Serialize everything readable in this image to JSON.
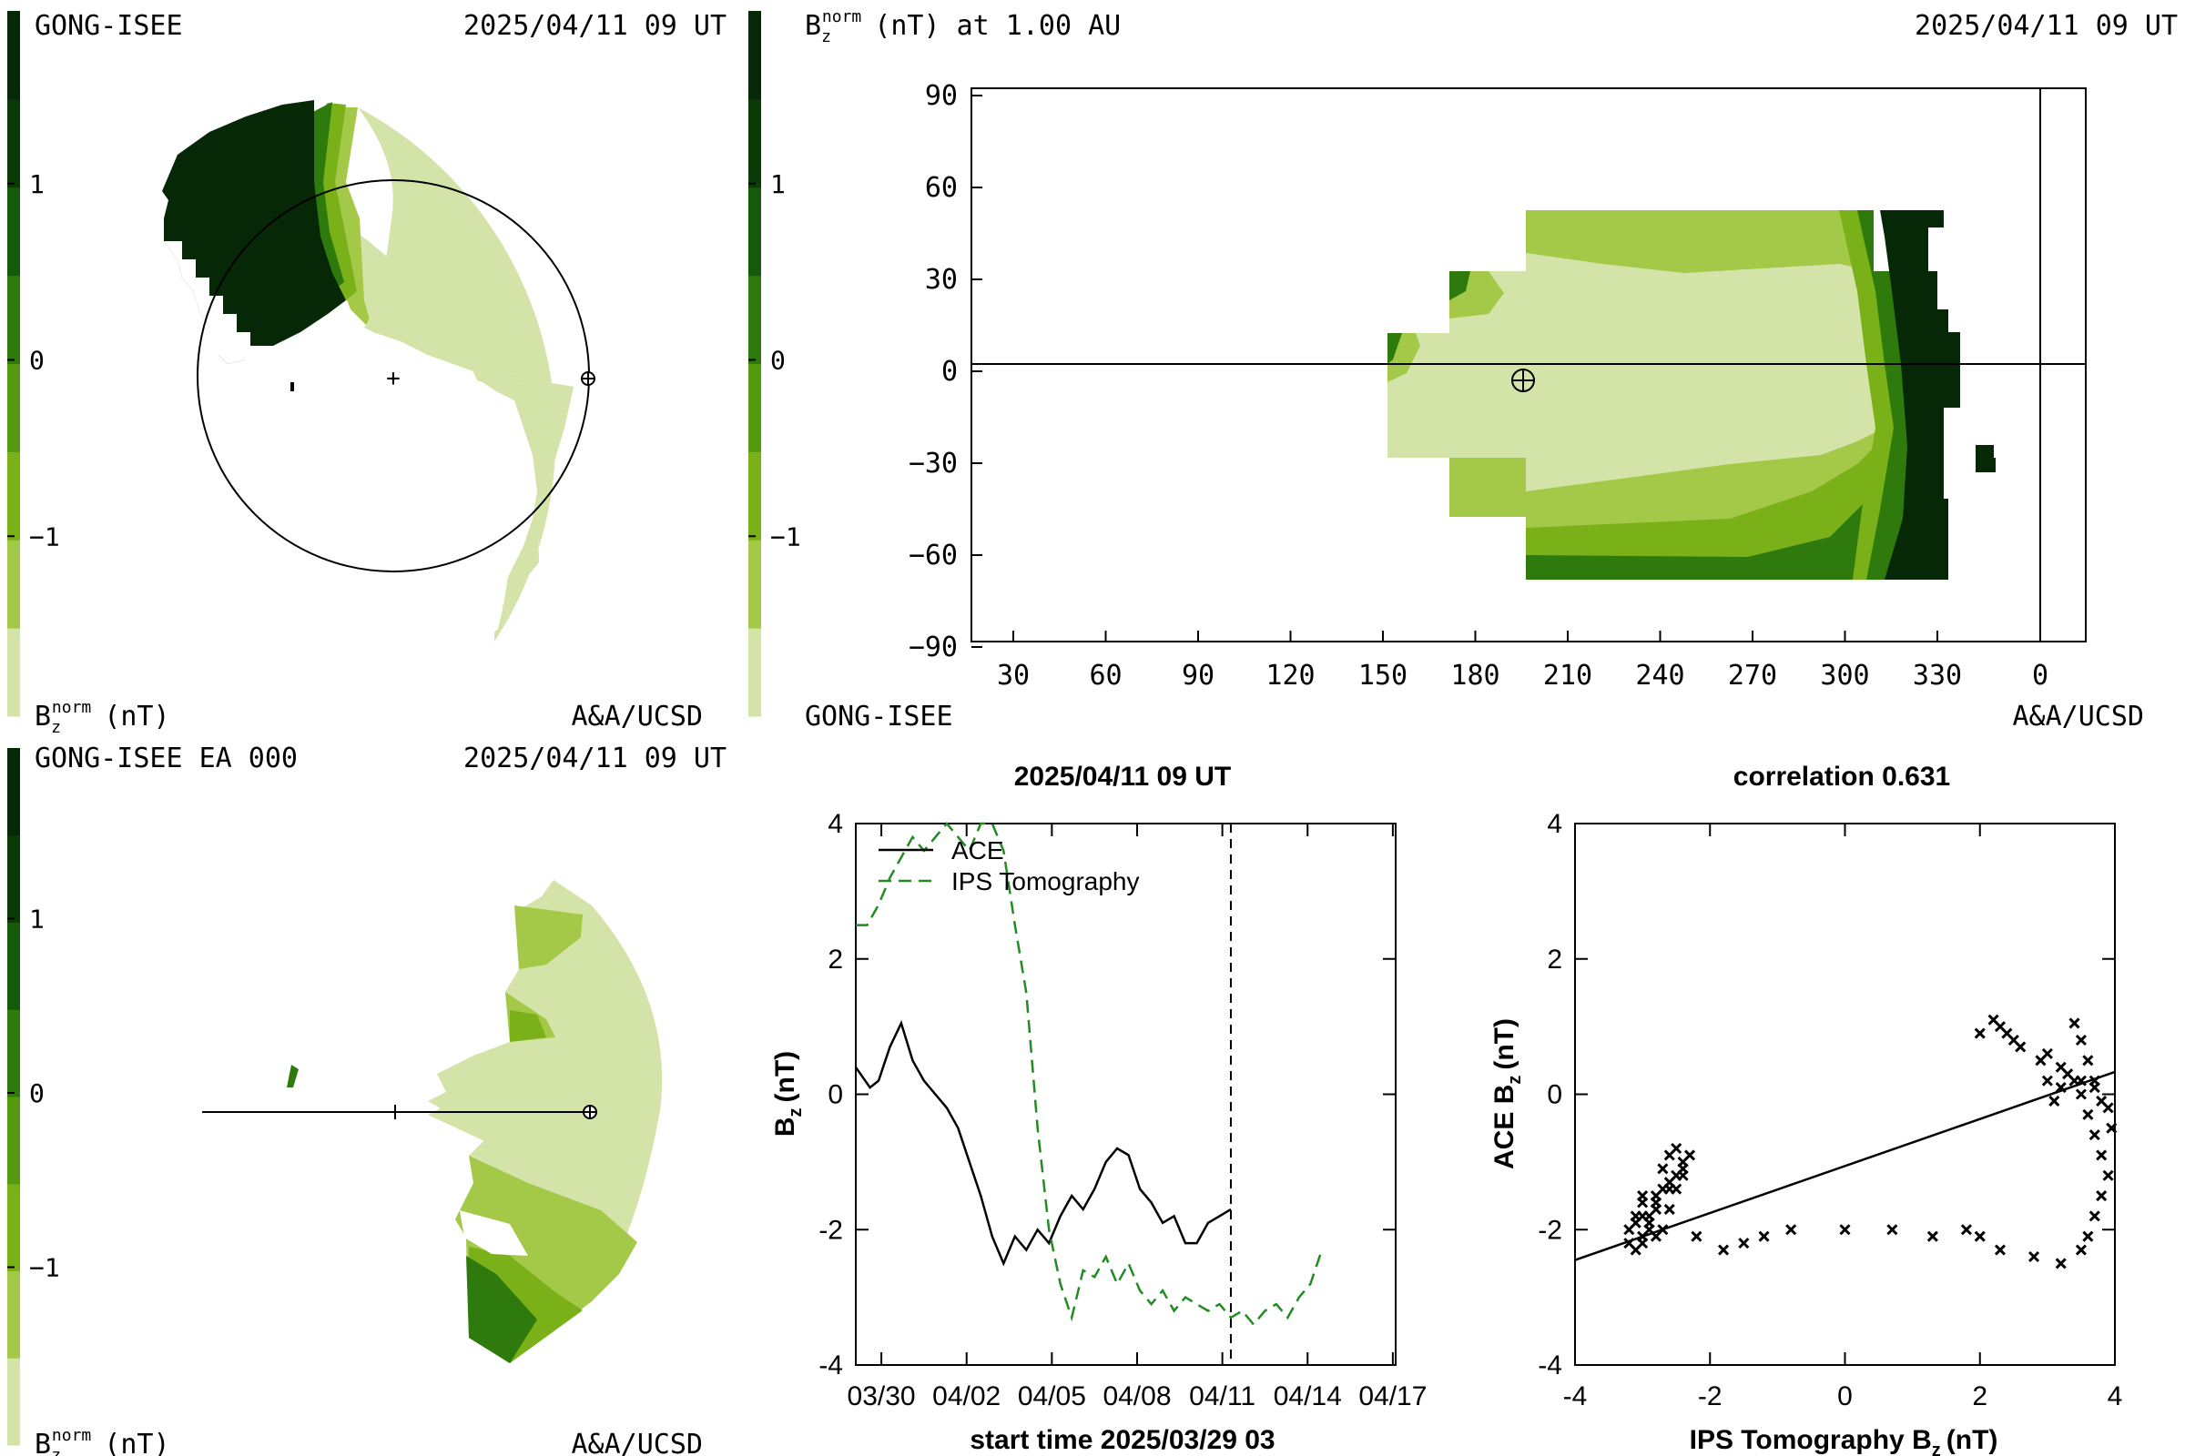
{
  "colors": {
    "scale": [
      "#d4e4a8",
      "#a4c848",
      "#7ab018",
      "#549a0e",
      "#2e7a0c",
      "#155a0a",
      "#0a3a06",
      "#062806"
    ],
    "ink": "#000000",
    "ips": "#228B22"
  },
  "panel_a": {
    "source": "GONG-ISEE",
    "time": "2025/04/11 09 UT",
    "bar_label": "B",
    "bar_sub": "z",
    "bar_sup": "norm",
    "bar_unit": "(nT)",
    "credit": "A&A/UCSD",
    "ticks": [
      "1",
      "0",
      "−1"
    ]
  },
  "panel_b": {
    "title_main": "B",
    "title_sub": "z",
    "title_sup": "norm",
    "title_rest": "(nT) at 1.00 AU",
    "time": "2025/04/11 09 UT",
    "source": "GONG-ISEE",
    "credit": "A&A/UCSD",
    "bar_ticks": [
      "1",
      "0",
      "−1"
    ],
    "y_ticks": [
      "90",
      "60",
      "30",
      "0",
      "−30",
      "−60",
      "−90"
    ],
    "x_ticks": [
      "30",
      "60",
      "90",
      "120",
      "150",
      "180",
      "210",
      "240",
      "270",
      "300",
      "330",
      "0"
    ]
  },
  "panel_c": {
    "source": "GONG-ISEE EA 000",
    "time": "2025/04/11 09 UT",
    "bar_label": "B",
    "bar_sub": "z",
    "bar_sup": "norm",
    "bar_unit": "(nT)",
    "credit": "A&A/UCSD",
    "ticks": [
      "1",
      "0",
      "−1"
    ]
  },
  "chart_data": [
    {
      "type": "line",
      "title": "2025/04/11 09 UT",
      "xlabel": "start time 2025/03/29 03",
      "ylabel": "B",
      "ylabel_sub": "z",
      "ylabel_unit": "(nT)",
      "xlim": [
        0,
        19
      ],
      "ylim": [
        -4,
        4
      ],
      "x_ticks": [
        {
          "label": "03/30",
          "x": 0.9
        },
        {
          "label": "04/02",
          "x": 3.9
        },
        {
          "label": "04/05",
          "x": 6.9
        },
        {
          "label": "04/08",
          "x": 9.9
        },
        {
          "label": "04/11",
          "x": 12.9
        },
        {
          "label": "04/14",
          "x": 15.9
        },
        {
          "label": "04/17",
          "x": 18.9
        }
      ],
      "y_ticks": [
        {
          "label": "4",
          "v": 4
        },
        {
          "label": "2",
          "v": 2
        },
        {
          "label": "0",
          "v": 0
        },
        {
          "label": "-2",
          "v": -2
        },
        {
          "label": "-4",
          "v": -4
        }
      ],
      "now_marker_x": 13.2,
      "series": [
        {
          "name": "ACE",
          "style": "solid",
          "x": [
            0,
            0.5,
            0.8,
            1.2,
            1.6,
            2.0,
            2.4,
            2.8,
            3.2,
            3.6,
            4.0,
            4.4,
            4.8,
            5.2,
            5.6,
            6.0,
            6.4,
            6.8,
            7.2,
            7.6,
            8.0,
            8.4,
            8.8,
            9.2,
            9.6,
            10.0,
            10.4,
            10.8,
            11.2,
            11.6,
            12.0,
            12.4,
            12.8,
            13.2
          ],
          "y": [
            0.4,
            0.1,
            0.2,
            0.7,
            1.05,
            0.5,
            0.2,
            0.0,
            -0.2,
            -0.5,
            -1.0,
            -1.5,
            -2.1,
            -2.5,
            -2.1,
            -2.3,
            -2.0,
            -2.2,
            -1.8,
            -1.5,
            -1.7,
            -1.4,
            -1.0,
            -0.8,
            -0.9,
            -1.4,
            -1.6,
            -1.9,
            -1.8,
            -2.2,
            -2.2,
            -1.9,
            -1.8,
            -1.7
          ]
        },
        {
          "name": "IPS Tomography",
          "style": "dashed",
          "x": [
            0,
            0.4,
            0.8,
            1.2,
            1.6,
            2.0,
            2.4,
            2.8,
            3.2,
            3.6,
            4.0,
            4.4,
            4.8,
            5.2,
            5.6,
            6.0,
            6.4,
            6.8,
            7.2,
            7.6,
            8.0,
            8.4,
            8.8,
            9.2,
            9.6,
            10.0,
            10.4,
            10.8,
            11.2,
            11.6,
            12.0,
            12.4,
            12.8,
            13.2,
            13.6,
            14.0,
            14.4,
            14.8,
            15.2,
            15.6,
            16.0,
            16.4
          ],
          "y": [
            2.5,
            2.5,
            2.8,
            3.2,
            3.5,
            3.8,
            3.6,
            3.8,
            4.1,
            3.8,
            3.6,
            4.0,
            4.2,
            3.6,
            2.5,
            1.5,
            -0.5,
            -2.0,
            -2.8,
            -3.3,
            -2.6,
            -2.7,
            -2.4,
            -2.8,
            -2.5,
            -2.9,
            -3.1,
            -2.9,
            -3.2,
            -3.0,
            -3.1,
            -3.2,
            -3.1,
            -3.3,
            -3.2,
            -3.4,
            -3.2,
            -3.1,
            -3.3,
            -3.0,
            -2.8,
            -2.3
          ]
        }
      ]
    },
    {
      "type": "scatter",
      "title": "correlation 0.631",
      "xlabel": "IPS Tomography B",
      "xlabel_sub": "z",
      "xlabel_unit": "(nT)",
      "ylabel": "ACE B",
      "ylabel_sub": "z",
      "ylabel_unit": "(nT)",
      "xlim": [
        -4,
        4
      ],
      "ylim": [
        -4,
        4
      ],
      "x_ticks": [
        "-4",
        "-2",
        "0",
        "2",
        "4"
      ],
      "y_ticks": [
        "4",
        "2",
        "0",
        "-2",
        "-4"
      ],
      "fit_line": {
        "x": [
          -4,
          4
        ],
        "y": [
          -2.45,
          0.33
        ]
      },
      "points": {
        "x": [
          -3.1,
          -3.0,
          -3.2,
          -2.9,
          -2.8,
          -3.0,
          -2.7,
          -2.6,
          -2.5,
          -2.4,
          -2.5,
          -2.6,
          -2.7,
          -2.8,
          -2.9,
          -3.0,
          -3.1,
          -3.2,
          -3.1,
          -3.0,
          -2.9,
          -2.8,
          -2.7,
          -2.6,
          -2.5,
          -2.4,
          -2.3,
          -2.4,
          -2.6,
          -2.8,
          -3.0,
          -2.2,
          -1.8,
          -1.5,
          -1.2,
          -0.8,
          0.0,
          0.7,
          1.3,
          1.8,
          2.0,
          2.3,
          2.8,
          3.2,
          3.5,
          3.6,
          3.7,
          3.8,
          3.9,
          3.8,
          3.7,
          3.6,
          3.5,
          3.4,
          3.3,
          3.2,
          3.1,
          3.0,
          2.9,
          2.6,
          2.5,
          2.4,
          2.3,
          2.2,
          2.0,
          3.0,
          3.2,
          3.5,
          3.7,
          3.9,
          3.95,
          3.8,
          3.7,
          3.6,
          3.5,
          3.4
        ],
        "y": [
          -1.9,
          -2.1,
          -2.2,
          -2.0,
          -1.7,
          -1.5,
          -1.4,
          -1.3,
          -1.2,
          -1.0,
          -0.8,
          -0.9,
          -1.1,
          -1.5,
          -1.8,
          -2.2,
          -2.3,
          -2.0,
          -1.8,
          -1.6,
          -1.9,
          -2.1,
          -2.0,
          -1.7,
          -1.4,
          -1.1,
          -0.9,
          -1.2,
          -1.4,
          -1.6,
          -1.8,
          -2.1,
          -2.3,
          -2.2,
          -2.1,
          -2.0,
          -2.0,
          -2.0,
          -2.1,
          -2.0,
          -2.1,
          -2.3,
          -2.4,
          -2.5,
          -2.3,
          -2.1,
          -1.8,
          -1.5,
          -1.2,
          -0.9,
          -0.6,
          -0.3,
          0.0,
          0.2,
          0.3,
          0.1,
          -0.1,
          0.2,
          0.5,
          0.7,
          0.8,
          0.9,
          1.0,
          1.1,
          0.9,
          0.6,
          0.4,
          0.2,
          0.1,
          -0.2,
          -0.5,
          -0.1,
          0.2,
          0.5,
          0.8,
          1.05
        ]
      }
    }
  ]
}
